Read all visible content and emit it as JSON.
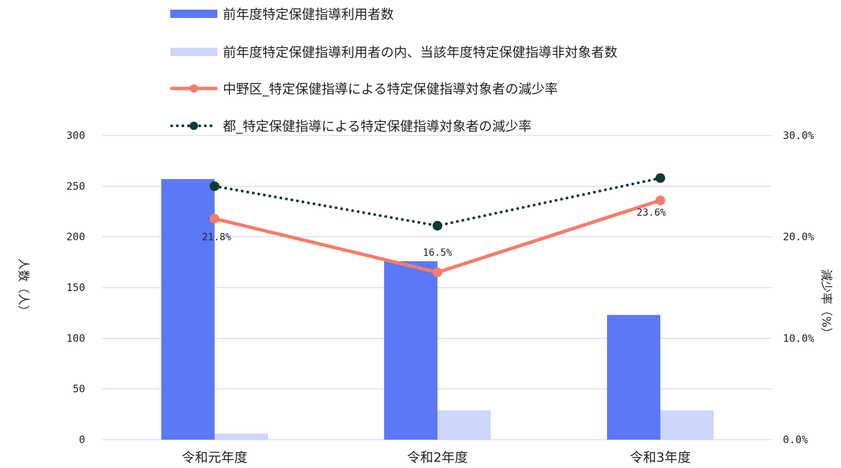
{
  "chart_data": {
    "type": "bar",
    "categories": [
      "令和元年度",
      "令和2年度",
      "令和3年度"
    ],
    "series": [
      {
        "name": "前年度特定保健指導利用者数",
        "type": "bar",
        "axis": "left",
        "color": "#5b78f6",
        "values": [
          257,
          176,
          123
        ]
      },
      {
        "name": "前年度特定保健指導利用者の内、当該年度特定保健指導非対象者数",
        "type": "bar",
        "axis": "left",
        "color": "#cdd6fb",
        "values": [
          6,
          29,
          29
        ]
      },
      {
        "name": "中野区_特定保健指導による特定保健指導対象者の減少率",
        "type": "line",
        "axis": "right",
        "color": "#f47d6b",
        "values": [
          21.8,
          16.5,
          23.6
        ],
        "labels": [
          "21.8%",
          "16.5%",
          "23.6%"
        ]
      },
      {
        "name": "都_特定保健指導による特定保健指導対象者の減少率",
        "type": "line",
        "axis": "right",
        "style": "dotted",
        "color": "#0e3b36",
        "values": [
          25.0,
          21.1,
          25.8
        ]
      }
    ],
    "left_axis": {
      "label": "人数（人）",
      "ylim": [
        0,
        300
      ],
      "ticks": [
        "0",
        "50",
        "100",
        "150",
        "200",
        "250",
        "300"
      ]
    },
    "right_axis": {
      "label": "減少率（%）",
      "ylim": [
        0,
        30
      ],
      "ticks": [
        "0.0%",
        "10.0%",
        "20.0%",
        "30.0%"
      ]
    },
    "grid": true,
    "legend_position": "top"
  }
}
